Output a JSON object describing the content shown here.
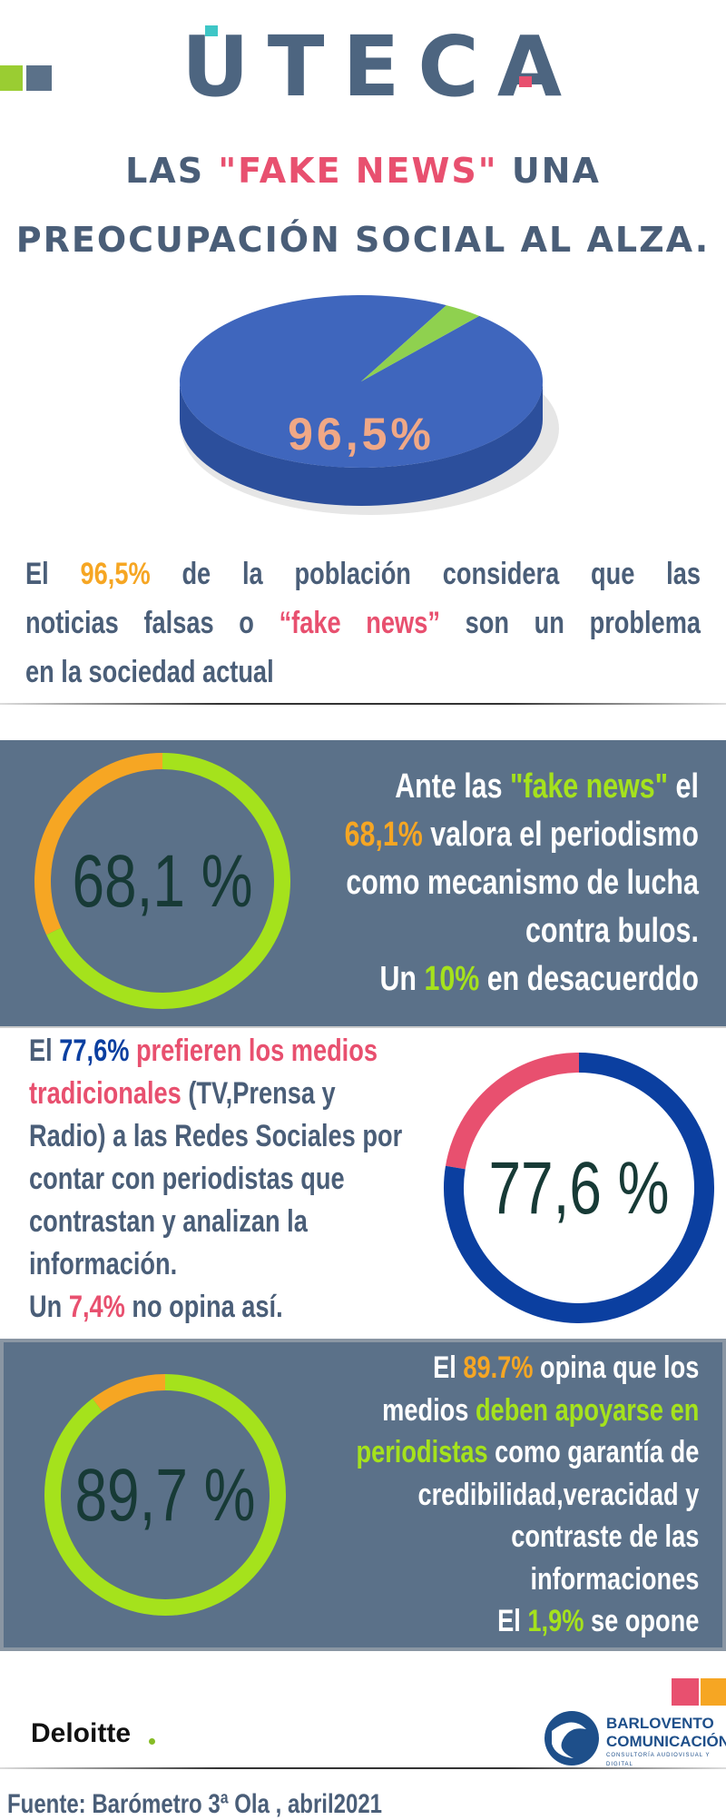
{
  "header": {
    "logo": "UTECA",
    "title_lines": [
      [
        {
          "text": "LAS "
        },
        {
          "text": "\"FAKE NEWS\"",
          "color": "#e8506f"
        },
        {
          "text": " UNA"
        }
      ],
      [
        {
          "text": "PREOCUPACIÓN SOCIAL AL ALZA."
        }
      ]
    ]
  },
  "pie": {
    "value": 96.5,
    "value_label": "96,5%",
    "color": "#3f66bd",
    "rest_color": "#8fd14f"
  },
  "intro": {
    "color": "#4a5e78",
    "lines": [
      [
        {
          "text": "El "
        },
        {
          "text": "96,5%",
          "color": "#f6a623"
        },
        {
          "text": " de la población considera que las"
        }
      ],
      [
        {
          "text": "noticias falsas o "
        },
        {
          "text": "“fake news”",
          "color": "#e8506f"
        },
        {
          "text": " son un problema"
        }
      ],
      [
        {
          "text": "en la sociedad actual"
        }
      ]
    ]
  },
  "donuts": [
    {
      "value": 68.1,
      "value_label": "68,1 %",
      "color": "#a5e21c",
      "rest_color": "#f6a623",
      "text_color": "#ffffff",
      "lines": [
        [
          {
            "text": "Ante las "
          },
          {
            "text": "\"fake news\"",
            "color": "#a5e21c"
          },
          {
            "text": " el"
          }
        ],
        [
          {
            "text": "68,1%",
            "color": "#f6a623"
          },
          {
            "text": " valora el periodismo"
          }
        ],
        [
          {
            "text": "como mecanismo de lucha"
          }
        ],
        [
          {
            "text": "contra bulos."
          }
        ],
        [
          {
            "text": "Un "
          },
          {
            "text": "10%",
            "color": "#a5e21c"
          },
          {
            "text": " en desacuerddo"
          }
        ]
      ]
    },
    {
      "value": 77.6,
      "value_label": "77,6 %",
      "color": "#0b3fa0",
      "rest_color": "#e8506f",
      "text_color": "#4a5e78",
      "lines": [
        [
          {
            "text": "El "
          },
          {
            "text": "77,6%",
            "color": "#0b3fa0"
          },
          {
            "text": " prefieren los medios",
            "color": "#e8506f"
          }
        ],
        [
          {
            "text": "tradicionales",
            "color": "#e8506f"
          },
          {
            "text": " (TV,Prensa y"
          }
        ],
        [
          {
            "text": "Radio) a las Redes Sociales por"
          }
        ],
        [
          {
            "text": "contar con periodistas que"
          }
        ],
        [
          {
            "text": "contrastan y analizan la"
          }
        ],
        [
          {
            "text": "información."
          }
        ],
        [
          {
            "text": "Un "
          },
          {
            "text": "7,4%",
            "color": "#e8506f"
          },
          {
            "text": " no opina así."
          }
        ]
      ]
    },
    {
      "value": 89.7,
      "value_label": "89,7 %",
      "color": "#a5e21c",
      "rest_color": "#f6a623",
      "text_color": "#ffffff",
      "lines": [
        [
          {
            "text": "El "
          },
          {
            "text": "89.7%",
            "color": "#f6a623"
          },
          {
            "text": " opina que los"
          }
        ],
        [
          {
            "text": "medios "
          },
          {
            "text": "deben apoyarse en",
            "color": "#a5e21c"
          }
        ],
        [
          {
            "text": "periodistas",
            "color": "#a5e21c"
          },
          {
            "text": " como garantía de"
          }
        ],
        [
          {
            "text": "credibilidad,veracidad y"
          }
        ],
        [
          {
            "text": "contraste de las"
          }
        ],
        [
          {
            "text": "informaciones"
          }
        ],
        [
          {
            "text": "El "
          },
          {
            "text": "1,9%",
            "color": "#a5e21c"
          },
          {
            "text": " se opone"
          }
        ]
      ]
    }
  ],
  "footer": {
    "deloitte": "Deloitte",
    "barlovento": [
      "BARLOVENTO",
      "COMUNICACIÓN",
      "CONSULTORÍA AUDIOVISUAL Y DIGITAL"
    ],
    "source": "Fuente: Barómetro 3ª Ola , abril2021"
  }
}
